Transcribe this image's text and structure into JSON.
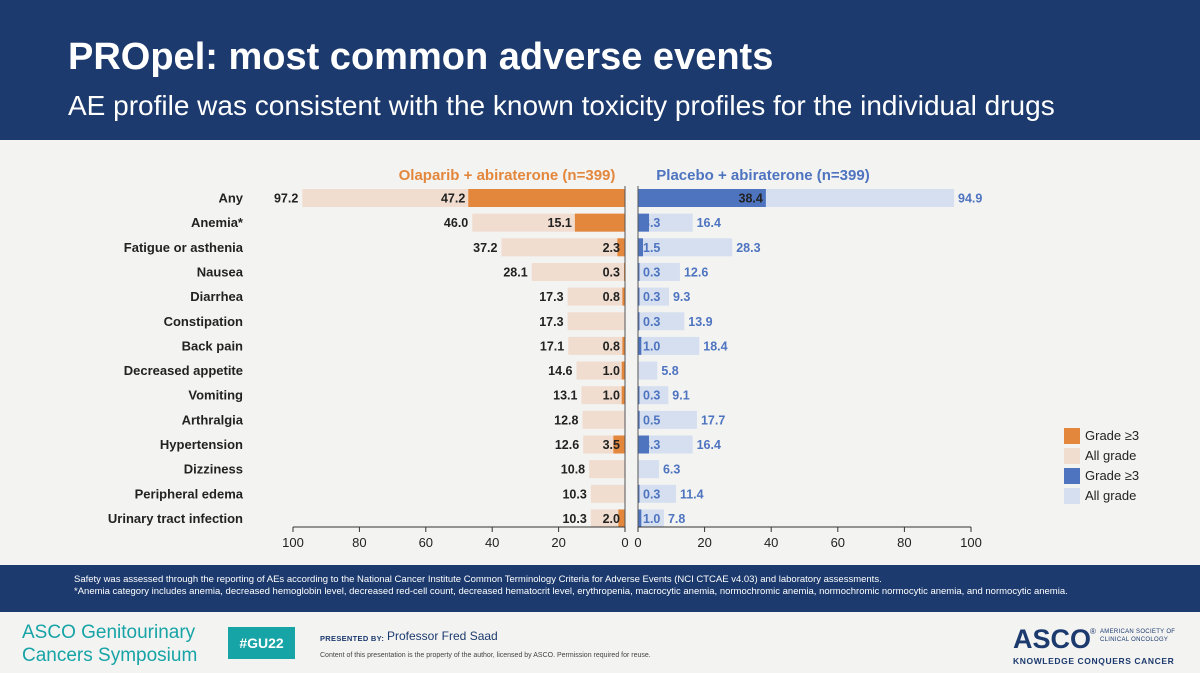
{
  "header": {
    "title": "PROpel: most common adverse events",
    "subtitle": "AE profile was consistent with the known toxicity profiles for the individual drugs"
  },
  "chart_data": {
    "type": "bar",
    "orientation": "horizontal-butterfly",
    "categories": [
      "Any",
      "Anemia*",
      "Fatigue or asthenia",
      "Nausea",
      "Diarrhea",
      "Constipation",
      "Back pain",
      "Decreased appetite",
      "Vomiting",
      "Arthralgia",
      "Hypertension",
      "Dizziness",
      "Peripheral edema",
      "Urinary tract infection"
    ],
    "panels": [
      {
        "title": "Olaparib + abiraterone (n=399)",
        "side": "left",
        "axis_ticks": [
          "100",
          "80",
          "60",
          "40",
          "20",
          "0"
        ],
        "xlim": [
          0,
          100
        ],
        "series": [
          {
            "name": "All grade",
            "values": [
              97.2,
              46.0,
              37.2,
              28.1,
              17.3,
              17.3,
              17.1,
              14.6,
              13.1,
              12.8,
              12.6,
              10.8,
              10.3,
              10.3
            ],
            "labels": [
              "97.2",
              "46.0",
              "37.2",
              "28.1",
              "17.3",
              "17.3",
              "17.1",
              "14.6",
              "13.1",
              "12.8",
              "12.6",
              "10.8",
              "10.3",
              "10.3"
            ]
          },
          {
            "name": "Grade ≥3",
            "values": [
              47.2,
              15.1,
              2.3,
              0.3,
              0.8,
              0,
              0.8,
              1.0,
              1.0,
              0,
              3.5,
              0,
              0,
              2.0
            ],
            "labels": [
              "47.2",
              "15.1",
              "2.3",
              "0.3",
              "0.8",
              "",
              "0.8",
              "1.0",
              "1.0",
              "",
              "3.5",
              "",
              "",
              "2.0"
            ]
          }
        ]
      },
      {
        "title": "Placebo + abiraterone (n=399)",
        "side": "right",
        "axis_ticks": [
          "0",
          "20",
          "40",
          "60",
          "80",
          "100"
        ],
        "xlim": [
          0,
          100
        ],
        "series": [
          {
            "name": "All grade",
            "values": [
              94.9,
              16.4,
              28.3,
              12.6,
              9.3,
              13.9,
              18.4,
              5.8,
              9.1,
              17.7,
              16.4,
              6.3,
              11.4,
              7.8
            ],
            "labels": [
              "94.9",
              "16.4",
              "28.3",
              "12.6",
              "9.3",
              "13.9",
              "18.4",
              "5.8",
              "9.1",
              "17.7",
              "16.4",
              "6.3",
              "11.4",
              "7.8"
            ]
          },
          {
            "name": "Grade ≥3",
            "values": [
              38.4,
              3.3,
              1.5,
              0.3,
              0.3,
              0.3,
              1.0,
              0,
              0.3,
              0.5,
              3.3,
              0,
              0.3,
              1.0
            ],
            "labels": [
              "38.4",
              "3.3",
              "1.5",
              "0.3",
              "0.3",
              "0.3",
              "1.0",
              "",
              "0.3",
              "0.5",
              "3.3",
              "",
              "0.3",
              "1.0"
            ]
          }
        ]
      }
    ],
    "grid": false,
    "legend_position": "bottom-right"
  },
  "colors": {
    "ola_grade3": "#e3873c",
    "ola_all": "#f1ddcf",
    "pla_grade3": "#4e74c0",
    "pla_all": "#d5dff0",
    "ola_title": "#e3873c",
    "pla_title": "#4e74c0",
    "pla_label": "#4e74c0",
    "header_bg": "#1c3a6e",
    "teal": "#17a4a6"
  },
  "legend": [
    {
      "label": "Grade ≥3",
      "color": "#e3873c"
    },
    {
      "label": "All grade",
      "color": "#f1ddcf"
    },
    {
      "label": "Grade ≥3",
      "color": "#4e74c0"
    },
    {
      "label": "All grade",
      "color": "#d5dff0"
    }
  ],
  "footnote": {
    "line1": "Safety was assessed through the reporting of AEs according to the National Cancer Institute Common Terminology Criteria for Adverse Events (NCI CTCAE v4.03) and laboratory assessments.",
    "line2": "*Anemia category includes anemia, decreased hemoglobin level, decreased red-cell count, decreased hematocrit level, erythropenia, macrocytic anemia, normochromic anemia, normochromic normocytic anemia, and normocytic anemia."
  },
  "footer": {
    "conference_line1": "ASCO Genitourinary",
    "conference_line2": "Cancers Symposium",
    "hashtag": "#GU22",
    "presented_by_label": "PRESENTED BY:",
    "presenter": "Professor Fred Saad",
    "disclaimer": "Content of this presentation is the property of the author, licensed by ASCO. Permission required for reuse.",
    "asco_logo": "ASCO",
    "asco_reg": "®",
    "asco_org_line1": "AMERICAN SOCIETY OF",
    "asco_org_line2": "CLINICAL ONCOLOGY",
    "asco_tagline": "KNOWLEDGE CONQUERS CANCER"
  }
}
